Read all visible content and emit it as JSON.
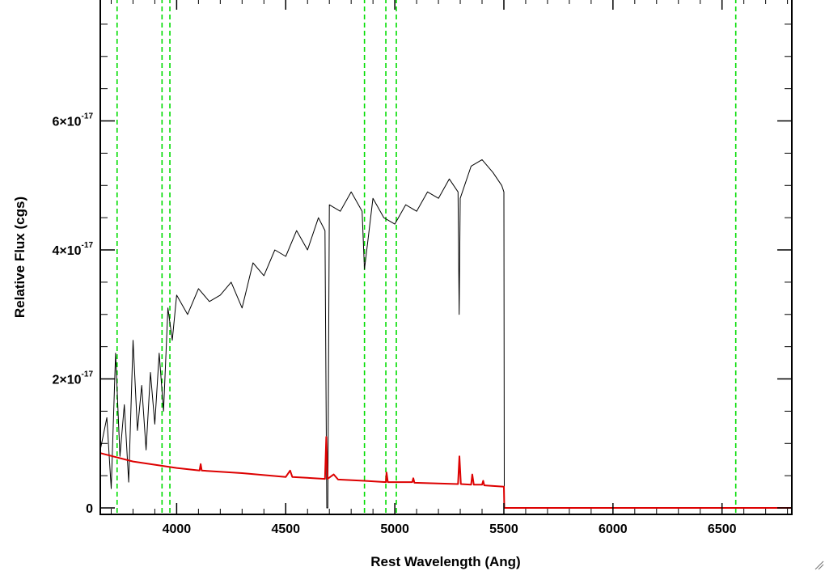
{
  "chart_data": {
    "type": "line",
    "xlabel": "Rest Wavelength (Ang)",
    "ylabel": "Relative Flux (cgs)",
    "xlim": [
      3650,
      6820
    ],
    "ylim": [
      -0.1,
      7.9
    ],
    "y_unit_exponent": -17,
    "x_ticks": [
      4000,
      4500,
      5000,
      5500,
      6000,
      6500
    ],
    "x_tick_labels": [
      "4000",
      "4500",
      "5000",
      "5500",
      "6000",
      "6500"
    ],
    "y_ticks": [
      0,
      2,
      4,
      6
    ],
    "y_tick_labels": [
      {
        "base": "0",
        "exp": ""
      },
      {
        "base": "2×10",
        "exp": "-17"
      },
      {
        "base": "4×10",
        "exp": "-17"
      },
      {
        "base": "6×10",
        "exp": "-17"
      }
    ],
    "reference_lines_x": [
      3727,
      3933,
      3969,
      4861,
      4959,
      5007,
      6563
    ],
    "reference_line_color": "#00dd00",
    "grid": false,
    "series": [
      {
        "color": "#000000",
        "points": [
          [
            3650,
            0.9
          ],
          [
            3680,
            1.4
          ],
          [
            3700,
            0.3
          ],
          [
            3720,
            2.4
          ],
          [
            3740,
            0.8
          ],
          [
            3760,
            1.6
          ],
          [
            3780,
            0.4
          ],
          [
            3800,
            2.6
          ],
          [
            3820,
            1.2
          ],
          [
            3840,
            1.9
          ],
          [
            3860,
            0.9
          ],
          [
            3880,
            2.1
          ],
          [
            3900,
            1.3
          ],
          [
            3920,
            2.4
          ],
          [
            3940,
            1.5
          ],
          [
            3960,
            3.1
          ],
          [
            3980,
            2.6
          ],
          [
            4000,
            3.3
          ],
          [
            4050,
            3.0
          ],
          [
            4100,
            3.4
          ],
          [
            4150,
            3.2
          ],
          [
            4200,
            3.3
          ],
          [
            4250,
            3.5
          ],
          [
            4300,
            3.1
          ],
          [
            4350,
            3.8
          ],
          [
            4400,
            3.6
          ],
          [
            4450,
            4.0
          ],
          [
            4500,
            3.9
          ],
          [
            4550,
            4.3
          ],
          [
            4600,
            4.0
          ],
          [
            4650,
            4.5
          ],
          [
            4680,
            4.3
          ],
          [
            4688,
            0.0
          ],
          [
            4693,
            0.0
          ],
          [
            4700,
            4.7
          ],
          [
            4750,
            4.6
          ],
          [
            4800,
            4.9
          ],
          [
            4850,
            4.6
          ],
          [
            4861,
            3.7
          ],
          [
            4900,
            4.8
          ],
          [
            4950,
            4.5
          ],
          [
            5000,
            4.4
          ],
          [
            5050,
            4.7
          ],
          [
            5100,
            4.6
          ],
          [
            5150,
            4.9
          ],
          [
            5200,
            4.8
          ],
          [
            5250,
            5.1
          ],
          [
            5290,
            4.9
          ],
          [
            5295,
            3.0
          ],
          [
            5300,
            4.8
          ],
          [
            5350,
            5.3
          ],
          [
            5400,
            5.4
          ],
          [
            5450,
            5.2
          ],
          [
            5490,
            5.0
          ],
          [
            5500,
            4.9
          ],
          [
            5502,
            0.0
          ],
          [
            6820,
            0.0
          ]
        ]
      },
      {
        "color": "#dd0000",
        "points": [
          [
            3650,
            0.85
          ],
          [
            3800,
            0.72
          ],
          [
            4000,
            0.62
          ],
          [
            4105,
            0.58
          ],
          [
            4110,
            0.68
          ],
          [
            4115,
            0.58
          ],
          [
            4300,
            0.54
          ],
          [
            4500,
            0.48
          ],
          [
            4520,
            0.58
          ],
          [
            4530,
            0.48
          ],
          [
            4680,
            0.45
          ],
          [
            4686,
            1.1
          ],
          [
            4692,
            0.45
          ],
          [
            4720,
            0.52
          ],
          [
            4740,
            0.44
          ],
          [
            4861,
            0.42
          ],
          [
            4959,
            0.4
          ],
          [
            4962,
            0.55
          ],
          [
            4968,
            0.4
          ],
          [
            5080,
            0.4
          ],
          [
            5085,
            0.46
          ],
          [
            5090,
            0.39
          ],
          [
            5290,
            0.37
          ],
          [
            5296,
            0.8
          ],
          [
            5303,
            0.37
          ],
          [
            5350,
            0.36
          ],
          [
            5355,
            0.52
          ],
          [
            5362,
            0.36
          ],
          [
            5400,
            0.36
          ],
          [
            5405,
            0.42
          ],
          [
            5410,
            0.35
          ],
          [
            5500,
            0.33
          ],
          [
            5502,
            0.0
          ],
          [
            6820,
            0.0
          ]
        ]
      }
    ]
  }
}
